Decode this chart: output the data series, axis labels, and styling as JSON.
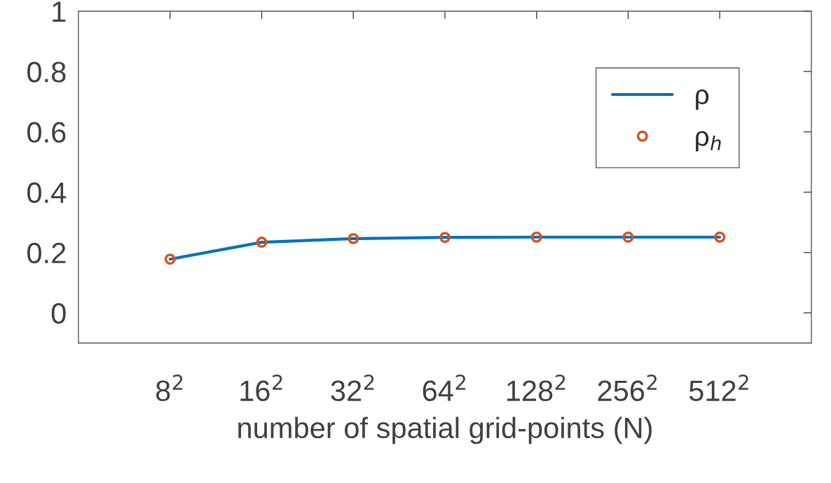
{
  "chart_data": {
    "type": "line",
    "xlabel": "number of spatial grid-points (N)",
    "categories": [
      "8$^{2}$",
      "16$^{2}$",
      "32$^{2}$",
      "64$^{2}$",
      "128$^{2}$",
      "256$^{2}$",
      "512$^{2}$"
    ],
    "series": [
      {
        "name": "ρ",
        "color": "#0072bd",
        "marker": "none",
        "values": [
          0.178,
          0.234,
          0.246,
          0.25,
          0.251,
          0.251,
          0.251
        ]
      },
      {
        "name": "ρ$_{h}$",
        "type": "scatter",
        "color": "#d95319",
        "marker": "circle",
        "values": [
          0.178,
          0.234,
          0.246,
          0.25,
          0.251,
          0.251,
          0.251
        ]
      }
    ],
    "ylim": [
      -0.1,
      1
    ],
    "yticks": [
      0,
      0.2,
      0.4,
      0.6,
      0.8,
      1
    ],
    "grid": false,
    "legend": "top right"
  }
}
